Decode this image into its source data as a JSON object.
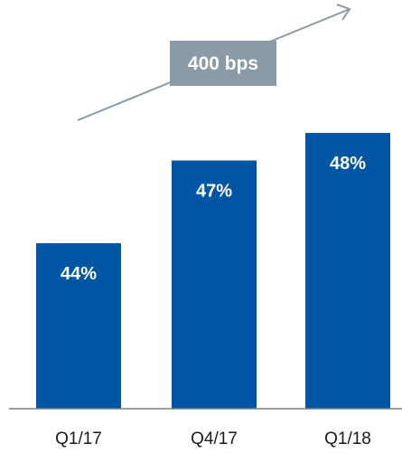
{
  "chart_data": {
    "type": "bar",
    "categories": [
      "Q1/17",
      "Q4/17",
      "Q1/18"
    ],
    "values": [
      44,
      47,
      48
    ],
    "value_labels": [
      "44%",
      "47%",
      "48%"
    ],
    "annotation": "400 bps",
    "ylim": [
      38,
      50
    ],
    "grid": false,
    "legend": "none"
  },
  "colors": {
    "bar": "#0056a4",
    "annotation_box": "#8a9aa6",
    "arrow": "#8c9ca8",
    "axis": "#7f7f7f"
  }
}
